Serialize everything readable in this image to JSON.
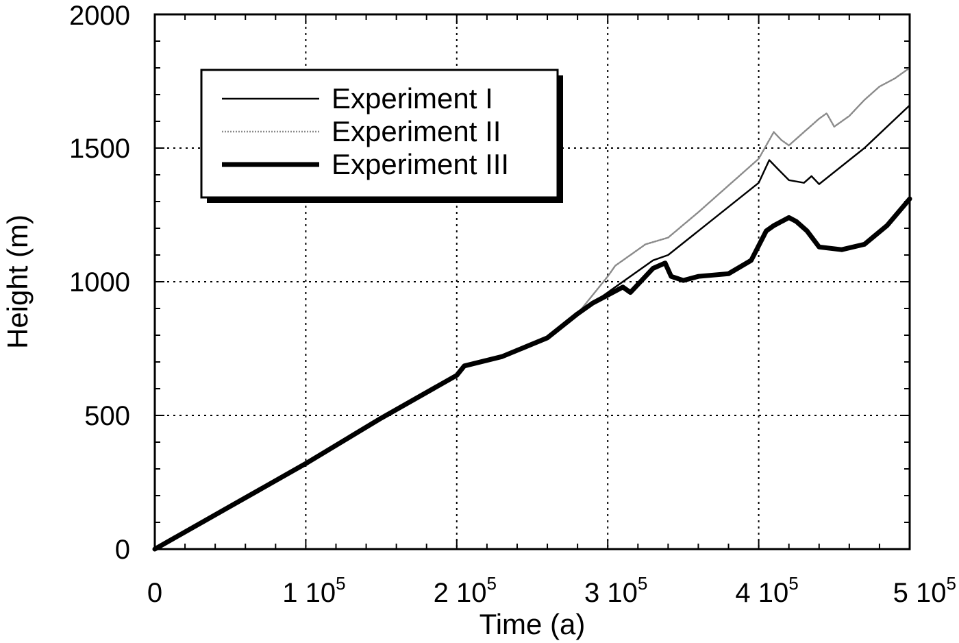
{
  "chart_data": {
    "type": "line",
    "title": "",
    "xlabel": "Time (a)",
    "ylabel": "Height (m)",
    "xlim": [
      0,
      500000
    ],
    "ylim": [
      0,
      2000
    ],
    "grid": true,
    "legend_position": "top-left",
    "x_ticks": [
      {
        "value": 0,
        "mant": "0",
        "exp": ""
      },
      {
        "value": 100000,
        "mant": "1 10",
        "exp": "5"
      },
      {
        "value": 200000,
        "mant": "2 10",
        "exp": "5"
      },
      {
        "value": 300000,
        "mant": "3 10",
        "exp": "5"
      },
      {
        "value": 400000,
        "mant": "4 10",
        "exp": "5"
      },
      {
        "value": 500000,
        "mant": "5 10",
        "exp": "5"
      }
    ],
    "y_ticks": [
      {
        "value": 0,
        "label": "0"
      },
      {
        "value": 500,
        "label": "500"
      },
      {
        "value": 1000,
        "label": "1000"
      },
      {
        "value": 1500,
        "label": "1500"
      },
      {
        "value": 2000,
        "label": "2000"
      }
    ],
    "series": [
      {
        "name": "Experiment I",
        "color": "#000000",
        "style": "thin",
        "points": [
          [
            0,
            0
          ],
          [
            50000,
            160
          ],
          [
            100000,
            320
          ],
          [
            150000,
            490
          ],
          [
            200000,
            650
          ],
          [
            205000,
            685
          ],
          [
            230000,
            720
          ],
          [
            260000,
            790
          ],
          [
            280000,
            880
          ],
          [
            300000,
            960
          ],
          [
            330000,
            1080
          ],
          [
            340000,
            1100
          ],
          [
            400000,
            1370
          ],
          [
            407000,
            1455
          ],
          [
            413000,
            1420
          ],
          [
            420000,
            1380
          ],
          [
            430000,
            1370
          ],
          [
            435000,
            1395
          ],
          [
            440000,
            1365
          ],
          [
            470000,
            1500
          ],
          [
            500000,
            1660
          ]
        ]
      },
      {
        "name": "Experiment II",
        "color": "#8a8a8a",
        "style": "dotted",
        "points": [
          [
            0,
            0
          ],
          [
            50000,
            160
          ],
          [
            100000,
            320
          ],
          [
            150000,
            490
          ],
          [
            200000,
            650
          ],
          [
            205000,
            685
          ],
          [
            230000,
            720
          ],
          [
            260000,
            790
          ],
          [
            280000,
            880
          ],
          [
            300000,
            1020
          ],
          [
            305000,
            1060
          ],
          [
            315000,
            1100
          ],
          [
            325000,
            1140
          ],
          [
            340000,
            1165
          ],
          [
            360000,
            1260
          ],
          [
            380000,
            1360
          ],
          [
            400000,
            1460
          ],
          [
            410000,
            1560
          ],
          [
            415000,
            1530
          ],
          [
            420000,
            1510
          ],
          [
            430000,
            1560
          ],
          [
            440000,
            1610
          ],
          [
            445000,
            1630
          ],
          [
            450000,
            1580
          ],
          [
            460000,
            1620
          ],
          [
            470000,
            1680
          ],
          [
            480000,
            1730
          ],
          [
            490000,
            1760
          ],
          [
            500000,
            1800
          ]
        ]
      },
      {
        "name": "Experiment III",
        "color": "#000000",
        "style": "thick",
        "points": [
          [
            0,
            0
          ],
          [
            50000,
            160
          ],
          [
            100000,
            320
          ],
          [
            150000,
            490
          ],
          [
            200000,
            650
          ],
          [
            205000,
            685
          ],
          [
            230000,
            720
          ],
          [
            260000,
            790
          ],
          [
            280000,
            880
          ],
          [
            290000,
            920
          ],
          [
            300000,
            950
          ],
          [
            310000,
            980
          ],
          [
            315000,
            960
          ],
          [
            330000,
            1050
          ],
          [
            338000,
            1070
          ],
          [
            342000,
            1020
          ],
          [
            350000,
            1005
          ],
          [
            360000,
            1020
          ],
          [
            380000,
            1030
          ],
          [
            395000,
            1080
          ],
          [
            405000,
            1190
          ],
          [
            410000,
            1210
          ],
          [
            420000,
            1240
          ],
          [
            425000,
            1225
          ],
          [
            432000,
            1190
          ],
          [
            440000,
            1130
          ],
          [
            455000,
            1120
          ],
          [
            470000,
            1140
          ],
          [
            485000,
            1210
          ],
          [
            500000,
            1310
          ]
        ]
      }
    ]
  }
}
